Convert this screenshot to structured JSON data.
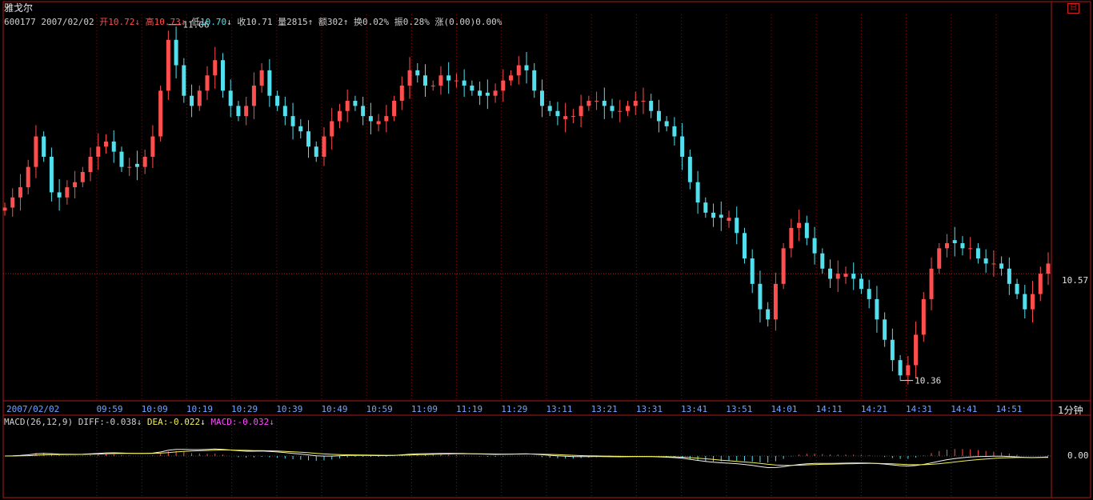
{
  "header": {
    "name": "雅戈尔",
    "code": "600177",
    "date": "2007/02/02",
    "open_label": "开",
    "open": "10.72",
    "open_arrow": "↓",
    "high_label": "高",
    "high": "10.73",
    "high_arrow": "↓",
    "low_label": "低",
    "low": "10.70",
    "low_arrow": "↓",
    "close_label": "收",
    "close": "10.71",
    "volume_label": "量",
    "volume": "2815",
    "volume_arrow": "↑",
    "amount_label": "额",
    "amount": "302",
    "amount_arrow": "↑",
    "turnover_label": "换",
    "turnover": "0.02%",
    "amplitude_label": "振",
    "amplitude": "0.28%",
    "change_label": "涨",
    "change": "(0.00)0.00%"
  },
  "macd": {
    "name": "MACD(26,12,9)",
    "diff_label": "DIFF:",
    "diff": "-0.038",
    "diff_arrow": "↓",
    "dea_label": "DEA:",
    "dea": "-0.022",
    "dea_arrow": "↓",
    "macd_label": "MACD:",
    "macd": "-0.032",
    "macd_arrow": "↓",
    "zero_label": "0.00"
  },
  "timeframe": "1分钟",
  "badge": "日",
  "price_line_label": "10.57",
  "high_marker": "11.06",
  "low_marker": "10.36",
  "colors": {
    "up": "#ff4e4e",
    "down": "#53e0ee",
    "frame": "#b01818",
    "diff_line": "#f0f0f0",
    "dea_line": "#f4f058",
    "macd_label": "#ff4cff",
    "date_axis": "#6fa6ff"
  },
  "chart_data": {
    "type": "candlestick",
    "interval": "1 minute",
    "date": "2007/02/02",
    "x_tick_labels": [
      "2007/02/02",
      "09:59",
      "10:09",
      "10:19",
      "10:29",
      "10:39",
      "10:49",
      "10:59",
      "11:09",
      "11:19",
      "11:29",
      "13:11",
      "13:21",
      "13:31",
      "13:41",
      "13:51",
      "14:01",
      "14:11",
      "14:21",
      "14:31",
      "14:41",
      "14:51"
    ],
    "ylim": [
      10.32,
      11.08
    ],
    "marked_high": 11.06,
    "marked_low": 10.36,
    "reference_price": 10.57,
    "close_path": [
      10.7,
      10.72,
      10.74,
      10.78,
      10.84,
      10.8,
      10.73,
      10.72,
      10.74,
      10.75,
      10.77,
      10.8,
      10.82,
      10.83,
      10.81,
      10.78,
      10.78,
      10.78,
      10.8,
      10.84,
      10.93,
      11.03,
      10.98,
      10.92,
      10.9,
      10.93,
      10.96,
      10.99,
      10.93,
      10.9,
      10.88,
      10.9,
      10.94,
      10.97,
      10.92,
      10.9,
      10.88,
      10.86,
      10.85,
      10.82,
      10.8,
      10.84,
      10.87,
      10.89,
      10.91,
      10.9,
      10.88,
      10.87,
      10.87,
      10.88,
      10.91,
      10.94,
      10.97,
      10.96,
      10.94,
      10.94,
      10.96,
      10.95,
      10.95,
      10.94,
      10.93,
      10.92,
      10.92,
      10.93,
      10.95,
      10.96,
      10.98,
      10.97,
      10.93,
      10.9,
      10.89,
      10.88,
      10.88,
      10.88,
      10.9,
      10.91,
      10.91,
      10.9,
      10.89,
      10.89,
      10.9,
      10.91,
      10.91,
      10.89,
      10.87,
      10.86,
      10.84,
      10.8,
      10.75,
      10.71,
      10.69,
      10.68,
      10.68,
      10.68,
      10.65,
      10.6,
      10.55,
      10.5,
      10.48,
      10.55,
      10.62,
      10.66,
      10.67,
      10.64,
      10.61,
      10.58,
      10.56,
      10.57,
      10.57,
      10.56,
      10.54,
      10.52,
      10.48,
      10.44,
      10.4,
      10.37,
      10.39,
      10.45,
      10.52,
      10.58,
      10.62,
      10.63,
      10.63,
      10.62,
      10.62,
      10.6,
      10.59,
      10.59,
      10.58,
      10.55,
      10.53,
      10.5,
      10.53,
      10.57,
      10.59
    ],
    "indicator": {
      "name": "MACD(26,12,9)",
      "series": [
        {
          "name": "DIFF",
          "value": -0.038
        },
        {
          "name": "DEA",
          "value": -0.022
        },
        {
          "name": "MACD",
          "value": -0.032
        }
      ],
      "zero_line": 0.0
    }
  }
}
